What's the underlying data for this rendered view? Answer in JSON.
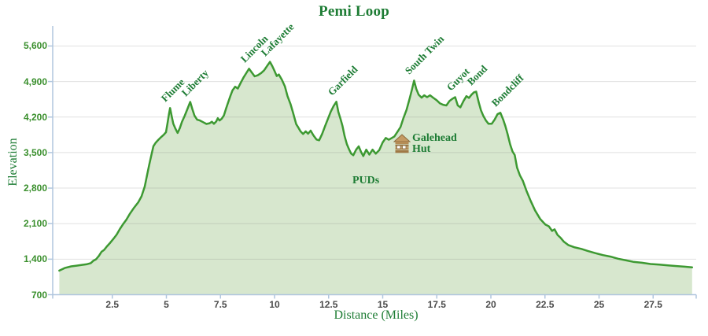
{
  "title": "Pemi Loop",
  "x_axis": {
    "label": "Distance (Miles)",
    "tick_labels": [
      "2.5",
      "5",
      "7.5",
      "10",
      "12.5",
      "15",
      "17.5",
      "20",
      "22.5",
      "25",
      "27.5"
    ],
    "tick_values": [
      2.5,
      5,
      7.5,
      10,
      12.5,
      15,
      17.5,
      20,
      22.5,
      25,
      27.5
    ]
  },
  "y_axis": {
    "label": "Elevation",
    "tick_labels": [
      "700",
      "1,400",
      "2,100",
      "2,800",
      "3,500",
      "4,200",
      "4,900",
      "5,600"
    ],
    "tick_values": [
      700,
      1400,
      2100,
      2800,
      3500,
      4200,
      4900,
      5600
    ]
  },
  "annotations": {
    "puds_label": "PUDs",
    "hut_icon": "log-cabin-icon",
    "hut_line1": "Galehead",
    "hut_line2": "Hut"
  },
  "colors": {
    "title_green": "#1d7c34",
    "line_green": "#3d9932",
    "fill_green": "#d7e7ce",
    "axis_blue": "#b0c6de",
    "gridline": "rgba(120,120,120,0.22)",
    "xtick_text": "#4a4a4a",
    "ytick_text": "#3a8f2d",
    "hut_brown": "#b58c55"
  },
  "chart_data": {
    "type": "area",
    "title": "Pemi Loop",
    "xlabel": "Distance (Miles)",
    "ylabel": "Elevation",
    "xlim": [
      0,
      29.5
    ],
    "ylim": [
      700,
      5950
    ],
    "grid": "horizontal",
    "legend": "none",
    "peaks": [
      {
        "name": "Flume",
        "mile": 5.17,
        "elevation_ft": 4378
      },
      {
        "name": "Liberty",
        "mile": 6.1,
        "elevation_ft": 4498
      },
      {
        "name": "Lincoln",
        "mile": 8.82,
        "elevation_ft": 5152
      },
      {
        "name": "Lafayette",
        "mile": 9.79,
        "elevation_ft": 5288
      },
      {
        "name": "Garfield",
        "mile": 12.86,
        "elevation_ft": 4502
      },
      {
        "name": "South Twin",
        "mile": 16.45,
        "elevation_ft": 4918
      },
      {
        "name": "Guyot",
        "mile": 18.35,
        "elevation_ft": 4592
      },
      {
        "name": "Bond",
        "mile": 19.32,
        "elevation_ft": 4702
      },
      {
        "name": "Bondcliff",
        "mile": 20.44,
        "elevation_ft": 4284
      }
    ],
    "point_annotations": [
      {
        "name": "PUDs",
        "mile": 14.2,
        "elevation_ft": 3450
      },
      {
        "name": "Galehead Hut",
        "mile": 15.4,
        "elevation_ft": 3782
      }
    ],
    "profile": [
      [
        0.05,
        1175
      ],
      [
        0.3,
        1225
      ],
      [
        0.6,
        1258
      ],
      [
        0.85,
        1272
      ],
      [
        1.1,
        1288
      ],
      [
        1.3,
        1298
      ],
      [
        1.5,
        1322
      ],
      [
        1.62,
        1368
      ],
      [
        1.75,
        1398
      ],
      [
        1.88,
        1465
      ],
      [
        2.0,
        1545
      ],
      [
        2.12,
        1582
      ],
      [
        2.25,
        1652
      ],
      [
        2.4,
        1722
      ],
      [
        2.55,
        1800
      ],
      [
        2.7,
        1885
      ],
      [
        2.85,
        1995
      ],
      [
        3.0,
        2090
      ],
      [
        3.15,
        2178
      ],
      [
        3.3,
        2288
      ],
      [
        3.5,
        2412
      ],
      [
        3.7,
        2522
      ],
      [
        3.85,
        2638
      ],
      [
        4.0,
        2832
      ],
      [
        4.1,
        3045
      ],
      [
        4.2,
        3248
      ],
      [
        4.3,
        3442
      ],
      [
        4.4,
        3625
      ],
      [
        4.5,
        3692
      ],
      [
        4.62,
        3748
      ],
      [
        4.75,
        3802
      ],
      [
        4.88,
        3852
      ],
      [
        4.98,
        3902
      ],
      [
        5.05,
        4075
      ],
      [
        5.12,
        4262
      ],
      [
        5.17,
        4378
      ],
      [
        5.25,
        4205
      ],
      [
        5.32,
        4068
      ],
      [
        5.42,
        3968
      ],
      [
        5.52,
        3888
      ],
      [
        5.62,
        3982
      ],
      [
        5.72,
        4105
      ],
      [
        5.85,
        4228
      ],
      [
        5.98,
        4368
      ],
      [
        6.1,
        4498
      ],
      [
        6.2,
        4358
      ],
      [
        6.3,
        4225
      ],
      [
        6.42,
        4148
      ],
      [
        6.55,
        4132
      ],
      [
        6.7,
        4098
      ],
      [
        6.85,
        4065
      ],
      [
        7.0,
        4078
      ],
      [
        7.1,
        4108
      ],
      [
        7.2,
        4068
      ],
      [
        7.3,
        4112
      ],
      [
        7.38,
        4178
      ],
      [
        7.46,
        4132
      ],
      [
        7.56,
        4168
      ],
      [
        7.66,
        4232
      ],
      [
        7.76,
        4368
      ],
      [
        7.86,
        4492
      ],
      [
        7.96,
        4618
      ],
      [
        8.06,
        4728
      ],
      [
        8.18,
        4798
      ],
      [
        8.3,
        4762
      ],
      [
        8.44,
        4878
      ],
      [
        8.58,
        4988
      ],
      [
        8.7,
        5072
      ],
      [
        8.82,
        5152
      ],
      [
        8.94,
        5082
      ],
      [
        9.08,
        5002
      ],
      [
        9.22,
        5022
      ],
      [
        9.38,
        5068
      ],
      [
        9.52,
        5122
      ],
      [
        9.66,
        5208
      ],
      [
        9.79,
        5288
      ],
      [
        9.9,
        5198
      ],
      [
        10.0,
        5108
      ],
      [
        10.1,
        5008
      ],
      [
        10.2,
        5038
      ],
      [
        10.34,
        4932
      ],
      [
        10.48,
        4802
      ],
      [
        10.6,
        4612
      ],
      [
        10.74,
        4452
      ],
      [
        10.86,
        4282
      ],
      [
        11.0,
        4062
      ],
      [
        11.1,
        3992
      ],
      [
        11.2,
        3918
      ],
      [
        11.32,
        3868
      ],
      [
        11.44,
        3918
      ],
      [
        11.55,
        3872
      ],
      [
        11.67,
        3932
      ],
      [
        11.8,
        3838
      ],
      [
        11.94,
        3758
      ],
      [
        12.06,
        3742
      ],
      [
        12.2,
        3868
      ],
      [
        12.34,
        4028
      ],
      [
        12.48,
        4178
      ],
      [
        12.6,
        4308
      ],
      [
        12.73,
        4418
      ],
      [
        12.86,
        4502
      ],
      [
        12.95,
        4302
      ],
      [
        13.04,
        4178
      ],
      [
        13.14,
        4022
      ],
      [
        13.24,
        3822
      ],
      [
        13.34,
        3668
      ],
      [
        13.44,
        3568
      ],
      [
        13.54,
        3482
      ],
      [
        13.64,
        3448
      ],
      [
        13.77,
        3558
      ],
      [
        13.89,
        3622
      ],
      [
        14.0,
        3512
      ],
      [
        14.1,
        3432
      ],
      [
        14.24,
        3558
      ],
      [
        14.38,
        3462
      ],
      [
        14.53,
        3558
      ],
      [
        14.68,
        3478
      ],
      [
        14.84,
        3548
      ],
      [
        15.0,
        3702
      ],
      [
        15.14,
        3788
      ],
      [
        15.28,
        3752
      ],
      [
        15.4,
        3782
      ],
      [
        15.54,
        3818
      ],
      [
        15.68,
        3908
      ],
      [
        15.82,
        4002
      ],
      [
        15.96,
        4182
      ],
      [
        16.1,
        4342
      ],
      [
        16.24,
        4558
      ],
      [
        16.35,
        4738
      ],
      [
        16.45,
        4918
      ],
      [
        16.55,
        4758
      ],
      [
        16.66,
        4642
      ],
      [
        16.8,
        4582
      ],
      [
        16.92,
        4628
      ],
      [
        17.05,
        4592
      ],
      [
        17.19,
        4628
      ],
      [
        17.34,
        4578
      ],
      [
        17.49,
        4532
      ],
      [
        17.64,
        4472
      ],
      [
        17.79,
        4442
      ],
      [
        17.94,
        4428
      ],
      [
        18.09,
        4518
      ],
      [
        18.23,
        4562
      ],
      [
        18.35,
        4592
      ],
      [
        18.47,
        4428
      ],
      [
        18.59,
        4392
      ],
      [
        18.74,
        4518
      ],
      [
        18.87,
        4612
      ],
      [
        18.99,
        4578
      ],
      [
        19.11,
        4642
      ],
      [
        19.22,
        4688
      ],
      [
        19.32,
        4702
      ],
      [
        19.44,
        4488
      ],
      [
        19.54,
        4332
      ],
      [
        19.65,
        4222
      ],
      [
        19.77,
        4132
      ],
      [
        19.89,
        4068
      ],
      [
        20.04,
        4068
      ],
      [
        20.17,
        4148
      ],
      [
        20.31,
        4258
      ],
      [
        20.44,
        4284
      ],
      [
        20.57,
        4148
      ],
      [
        20.67,
        4022
      ],
      [
        20.77,
        3868
      ],
      [
        20.89,
        3662
      ],
      [
        21.0,
        3522
      ],
      [
        21.1,
        3452
      ],
      [
        21.21,
        3202
      ],
      [
        21.34,
        3052
      ],
      [
        21.48,
        2942
      ],
      [
        21.64,
        2752
      ],
      [
        21.84,
        2548
      ],
      [
        22.04,
        2362
      ],
      [
        22.28,
        2192
      ],
      [
        22.52,
        2082
      ],
      [
        22.68,
        2048
      ],
      [
        22.83,
        1958
      ],
      [
        22.94,
        1988
      ],
      [
        23.08,
        1878
      ],
      [
        23.23,
        1818
      ],
      [
        23.38,
        1742
      ],
      [
        23.58,
        1678
      ],
      [
        23.88,
        1632
      ],
      [
        24.18,
        1602
      ],
      [
        24.48,
        1562
      ],
      [
        24.83,
        1518
      ],
      [
        25.18,
        1480
      ],
      [
        25.53,
        1450
      ],
      [
        25.88,
        1408
      ],
      [
        26.28,
        1375
      ],
      [
        26.58,
        1348
      ],
      [
        26.98,
        1330
      ],
      [
        27.38,
        1305
      ],
      [
        27.78,
        1292
      ],
      [
        28.18,
        1278
      ],
      [
        28.58,
        1265
      ],
      [
        28.95,
        1252
      ],
      [
        29.3,
        1238
      ]
    ]
  }
}
